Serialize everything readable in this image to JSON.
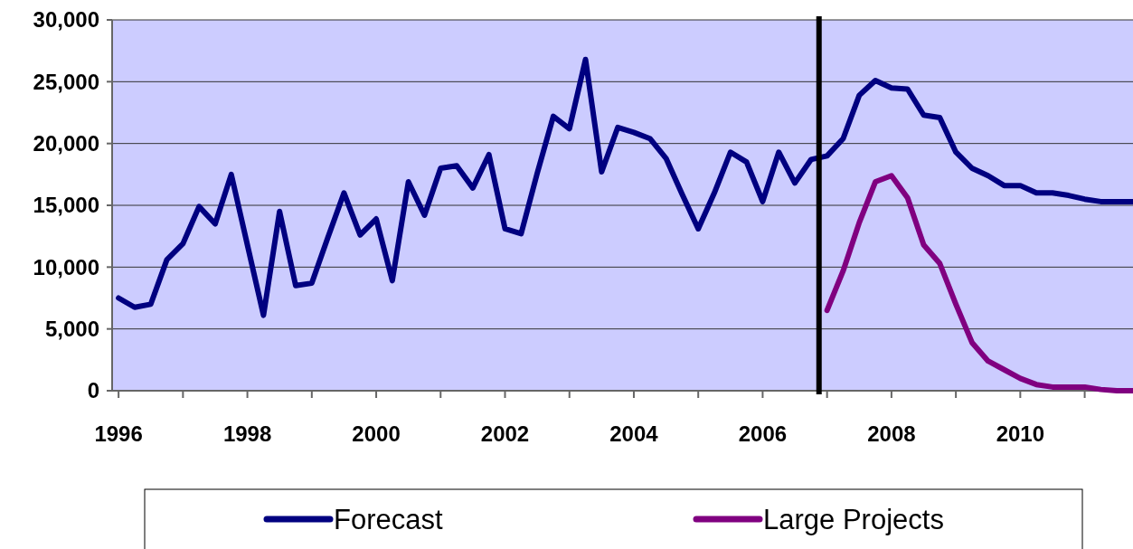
{
  "chart_data": {
    "type": "line",
    "x": [
      1996,
      1996.25,
      1996.5,
      1996.75,
      1997,
      1997.25,
      1997.5,
      1997.75,
      1998,
      1998.25,
      1998.5,
      1998.75,
      1999,
      1999.25,
      1999.5,
      1999.75,
      2000,
      2000.25,
      2000.5,
      2000.75,
      2001,
      2001.25,
      2001.5,
      2001.75,
      2002,
      2002.25,
      2002.5,
      2002.75,
      2003,
      2003.25,
      2003.5,
      2003.75,
      2004,
      2004.25,
      2004.5,
      2004.75,
      2005,
      2005.25,
      2005.5,
      2005.75,
      2006,
      2006.25,
      2006.5,
      2006.75,
      2007,
      2007.25,
      2007.5,
      2007.75,
      2008,
      2008.25,
      2008.5,
      2008.75,
      2009,
      2009.25,
      2009.5,
      2009.75,
      2010,
      2010.25,
      2010.5,
      2010.75,
      2011,
      2011.25,
      2011.5,
      2011.75
    ],
    "series": [
      {
        "name": "Forecast",
        "color": "#000080",
        "values": [
          7500,
          6750,
          7000,
          10600,
          11900,
          14900,
          13500,
          17500,
          11800,
          6100,
          14500,
          8500,
          8700,
          12400,
          16000,
          12600,
          13900,
          8900,
          16900,
          14200,
          18000,
          18200,
          16400,
          19100,
          13100,
          12700,
          17600,
          22200,
          21200,
          26800,
          17700,
          21300,
          20900,
          20400,
          18800,
          15900,
          13100,
          16000,
          19300,
          18500,
          15300,
          19300,
          16800,
          18700,
          19000,
          20400,
          23900,
          25100,
          24500,
          24400,
          22300,
          22100,
          19300,
          18000,
          17400,
          16600,
          16600,
          16000,
          16000,
          15800,
          15500,
          15300,
          15300,
          15300
        ]
      },
      {
        "name": "Large Projects",
        "color": "#800080",
        "values": [
          null,
          null,
          null,
          null,
          null,
          null,
          null,
          null,
          null,
          null,
          null,
          null,
          null,
          null,
          null,
          null,
          null,
          null,
          null,
          null,
          null,
          null,
          null,
          null,
          null,
          null,
          null,
          null,
          null,
          null,
          null,
          null,
          null,
          null,
          null,
          null,
          null,
          null,
          null,
          null,
          null,
          null,
          null,
          null,
          6500,
          9700,
          13600,
          16900,
          17400,
          15600,
          11800,
          10300,
          7000,
          3900,
          2400,
          1700,
          1000,
          500,
          300,
          300,
          300,
          100,
          0,
          0
        ]
      }
    ],
    "xlim": [
      1995.9,
      2011.75
    ],
    "xticks": [
      1996,
      {
        "value": 1997,
        "label": null
      },
      1998,
      {
        "value": 1999,
        "label": null
      },
      2000,
      {
        "value": 2001,
        "label": null
      },
      2002,
      {
        "value": 2003,
        "label": null
      },
      2004,
      {
        "value": 2005,
        "label": null
      },
      2006,
      {
        "value": 2007,
        "label": null
      },
      2008,
      {
        "value": 2009,
        "label": null
      },
      2010,
      {
        "value": 2011,
        "label": null
      }
    ],
    "ylim": [
      0,
      30000
    ],
    "yticks": [
      {
        "value": 0,
        "label": "0"
      },
      {
        "value": 5000,
        "label": "5,000"
      },
      {
        "value": 10000,
        "label": "10,000"
      },
      {
        "value": 15000,
        "label": "15,000"
      },
      {
        "value": 20000,
        "label": "20,000"
      },
      {
        "value": 25000,
        "label": "25,000"
      },
      {
        "value": 30000,
        "label": "30,000"
      }
    ],
    "ref_lines": [
      {
        "axis": "x",
        "value": 2006.875,
        "color": "#000000"
      }
    ],
    "grid": "y",
    "legend": "bottom",
    "marker": "none",
    "line_style": "solid"
  }
}
